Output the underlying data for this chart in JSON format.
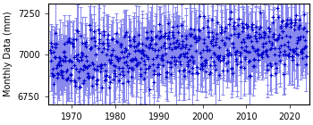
{
  "title": "",
  "ylabel": "Monthly Data (mm)",
  "xlabel": "",
  "xlim": [
    1964.5,
    2024.5
  ],
  "ylim": [
    6700,
    7310
  ],
  "yticks": [
    6750,
    7000,
    7250
  ],
  "xticks": [
    1970,
    1980,
    1990,
    2000,
    2010,
    2020
  ],
  "color": "#0000CC",
  "ecolor": "#8888EE",
  "base_level": 6960,
  "trend_per_year": 2.2,
  "seasonal_amplitude": 100,
  "noise_amplitude": 50,
  "error_low_base": 100,
  "error_high_base": 100,
  "error_low_noise": 60,
  "error_high_noise": 60,
  "start_year": 1965,
  "end_year": 2023,
  "marker": "+",
  "markersize": 2.5,
  "capsize": 1.5,
  "capthick": 0.7,
  "elinewidth": 0.7,
  "figsize": [
    3.5,
    1.4
  ],
  "dpi": 100
}
